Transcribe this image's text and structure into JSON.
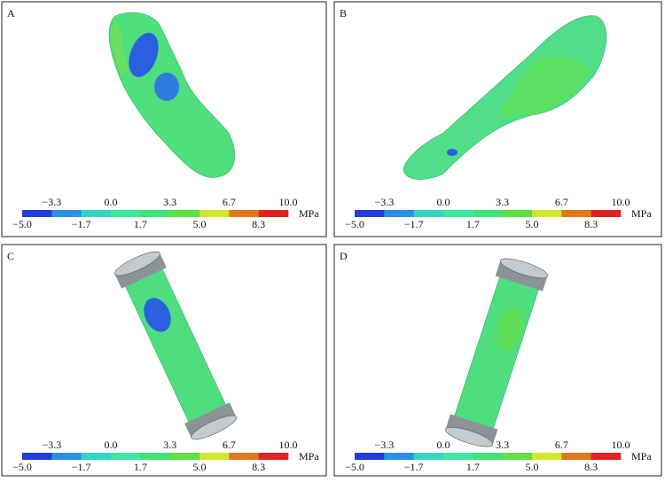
{
  "panels": [
    {
      "label": "A"
    },
    {
      "label": "B"
    },
    {
      "label": "C"
    },
    {
      "label": "D"
    }
  ],
  "colorbar": {
    "unit": "MPa",
    "ticks": [
      "−5.0",
      "−3.3",
      "−1.7",
      "0.0",
      "1.7",
      "3.3",
      "5.0",
      "6.7",
      "8.3",
      "10.0"
    ],
    "colors": [
      "#1f3fd8",
      "#2b8fe6",
      "#33d6c4",
      "#3ee8a0",
      "#42e27a",
      "#5ee046",
      "#cfe82c",
      "#e0781e",
      "#e02222"
    ]
  }
}
